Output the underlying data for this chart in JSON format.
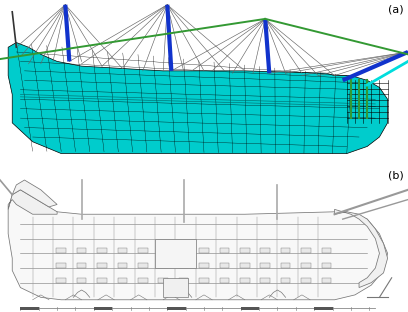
{
  "label_a": "(a)",
  "label_b": "(b)",
  "bg_color": "#ffffff",
  "fig_width": 4.08,
  "fig_height": 3.12,
  "dpi": 100,
  "label_fontsize": 8,
  "cyan": "#00cccc",
  "dark_cyan": "#009999",
  "mast_blue": "#1133cc",
  "green": "#339933",
  "black": "#000000",
  "gray_dark": "#444444",
  "gray_med": "#888888",
  "gray_light": "#bbbbbb",
  "gray_lighter": "#dddddd",
  "white": "#ffffff"
}
